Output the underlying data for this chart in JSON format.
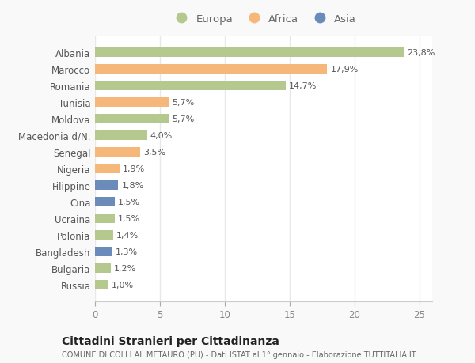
{
  "countries": [
    "Albania",
    "Marocco",
    "Romania",
    "Tunisia",
    "Moldova",
    "Macedonia d/N.",
    "Senegal",
    "Nigeria",
    "Filippine",
    "Cina",
    "Ucraina",
    "Polonia",
    "Bangladesh",
    "Bulgaria",
    "Russia"
  ],
  "values": [
    23.8,
    17.9,
    14.7,
    5.7,
    5.7,
    4.0,
    3.5,
    1.9,
    1.8,
    1.5,
    1.5,
    1.4,
    1.3,
    1.2,
    1.0
  ],
  "labels": [
    "23,8%",
    "17,9%",
    "14,7%",
    "5,7%",
    "5,7%",
    "4,0%",
    "3,5%",
    "1,9%",
    "1,8%",
    "1,5%",
    "1,5%",
    "1,4%",
    "1,3%",
    "1,2%",
    "1,0%"
  ],
  "continents": [
    "Europa",
    "Africa",
    "Europa",
    "Africa",
    "Europa",
    "Europa",
    "Africa",
    "Africa",
    "Asia",
    "Asia",
    "Europa",
    "Europa",
    "Asia",
    "Europa",
    "Europa"
  ],
  "colors": {
    "Europa": "#b5c98e",
    "Africa": "#f5b87a",
    "Asia": "#6b8cba"
  },
  "legend_labels": [
    "Europa",
    "Africa",
    "Asia"
  ],
  "legend_colors": [
    "#b5c98e",
    "#f5b87a",
    "#6b8cba"
  ],
  "title": "Cittadini Stranieri per Cittadinanza",
  "subtitle": "COMUNE DI COLLI AL METAURO (PU) - Dati ISTAT al 1° gennaio - Elaborazione TUTTITALIA.IT",
  "xlim": [
    0,
    26
  ],
  "xticks": [
    0,
    5,
    10,
    15,
    20,
    25
  ],
  "plot_bg": "#ffffff",
  "fig_bg": "#f9f9f9",
  "grid_color": "#e8e8e8",
  "bar_height": 0.55,
  "figsize": [
    6.0,
    4.6
  ],
  "dpi": 100
}
